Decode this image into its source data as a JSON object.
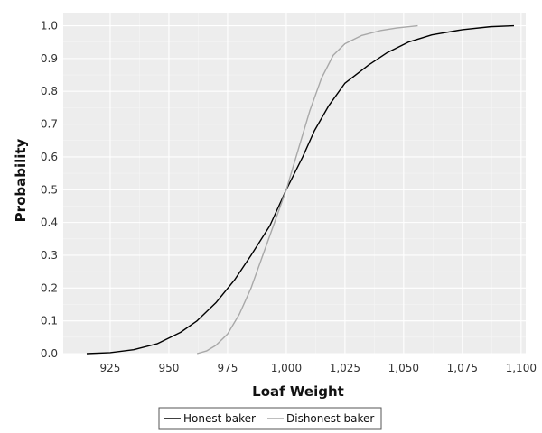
{
  "chart_data": {
    "type": "line",
    "title": "",
    "xlabel": "Loaf Weight",
    "ylabel": "Probability",
    "xlim": [
      905,
      1102
    ],
    "ylim": [
      0,
      1.04
    ],
    "xticks": [
      {
        "value": 925,
        "label": "925"
      },
      {
        "value": 950,
        "label": "950"
      },
      {
        "value": 975,
        "label": "975"
      },
      {
        "value": 1000,
        "label": "1,000"
      },
      {
        "value": 1025,
        "label": "1,025"
      },
      {
        "value": 1050,
        "label": "1,050"
      },
      {
        "value": 1075,
        "label": "1,075"
      },
      {
        "value": 1100,
        "label": "1,100"
      }
    ],
    "yticks": [
      {
        "value": 0.0,
        "label": "0.0"
      },
      {
        "value": 0.1,
        "label": "0.1"
      },
      {
        "value": 0.2,
        "label": "0.2"
      },
      {
        "value": 0.3,
        "label": "0.3"
      },
      {
        "value": 0.4,
        "label": "0.4"
      },
      {
        "value": 0.5,
        "label": "0.5"
      },
      {
        "value": 0.6,
        "label": "0.6"
      },
      {
        "value": 0.7,
        "label": "0.7"
      },
      {
        "value": 0.8,
        "label": "0.8"
      },
      {
        "value": 0.9,
        "label": "0.9"
      },
      {
        "value": 1.0,
        "label": "1.0"
      }
    ],
    "grid": true,
    "legend_position": "bottom",
    "series": [
      {
        "name": "Honest baker",
        "color": "#000000",
        "points": [
          [
            915,
            0.0
          ],
          [
            925,
            0.003
          ],
          [
            935,
            0.012
          ],
          [
            945,
            0.03
          ],
          [
            955,
            0.065
          ],
          [
            962,
            0.1
          ],
          [
            970,
            0.155
          ],
          [
            978,
            0.225
          ],
          [
            985,
            0.3
          ],
          [
            993,
            0.39
          ],
          [
            1000,
            0.5
          ],
          [
            1007,
            0.6
          ],
          [
            1012,
            0.68
          ],
          [
            1018,
            0.755
          ],
          [
            1025,
            0.825
          ],
          [
            1035,
            0.88
          ],
          [
            1043,
            0.918
          ],
          [
            1052,
            0.95
          ],
          [
            1062,
            0.972
          ],
          [
            1075,
            0.988
          ],
          [
            1087,
            0.997
          ],
          [
            1097,
            1.0
          ]
        ]
      },
      {
        "name": "Dishonest baker",
        "color": "#a8a8a8",
        "points": [
          [
            962,
            0.0
          ],
          [
            966,
            0.008
          ],
          [
            970,
            0.025
          ],
          [
            975,
            0.06
          ],
          [
            980,
            0.12
          ],
          [
            985,
            0.2
          ],
          [
            990,
            0.3
          ],
          [
            995,
            0.4
          ],
          [
            1000,
            0.5
          ],
          [
            1005,
            0.62
          ],
          [
            1010,
            0.74
          ],
          [
            1015,
            0.84
          ],
          [
            1020,
            0.91
          ],
          [
            1025,
            0.945
          ],
          [
            1032,
            0.97
          ],
          [
            1040,
            0.985
          ],
          [
            1047,
            0.993
          ],
          [
            1056,
            1.0
          ]
        ]
      }
    ]
  }
}
